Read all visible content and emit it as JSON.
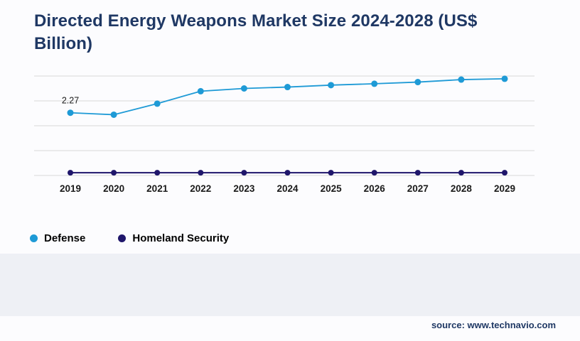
{
  "page": {
    "source": "source: www.technavio.com"
  },
  "colors": {
    "title": "#1f3864",
    "gridline": "#d8d8d8",
    "axis_text": "#1a1a1a",
    "data_label": "#1a1a1a",
    "background_band": "#eef0f5",
    "defense_blue": "#1e9ad6",
    "homeland_navy": "#1f166b"
  },
  "chart_data": {
    "type": "line",
    "title": "Directed Energy Weapons Market Size 2024-2028 (US$ Billion)",
    "xlabel": "",
    "ylabel": "",
    "categories": [
      "2019",
      "2020",
      "2021",
      "2022",
      "2023",
      "2024",
      "2025",
      "2026",
      "2027",
      "2028",
      "2029"
    ],
    "series": [
      {
        "name": "Defense",
        "color": "#1e9ad6",
        "marker": "circle",
        "values": [
          2.27,
          2.2,
          2.6,
          3.05,
          3.15,
          3.2,
          3.27,
          3.32,
          3.38,
          3.47,
          3.5
        ]
      },
      {
        "name": "Homeland Security",
        "color": "#1f166b",
        "marker": "circle",
        "values": [
          0.1,
          0.1,
          0.1,
          0.1,
          0.1,
          0.1,
          0.1,
          0.1,
          0.1,
          0.1,
          0.1
        ]
      }
    ],
    "annotations": [
      {
        "series": "Defense",
        "category": "2019",
        "text": "2.27"
      }
    ],
    "ylim": [
      0,
      3.6
    ],
    "grid": true,
    "legend_position": "bottom-left"
  }
}
